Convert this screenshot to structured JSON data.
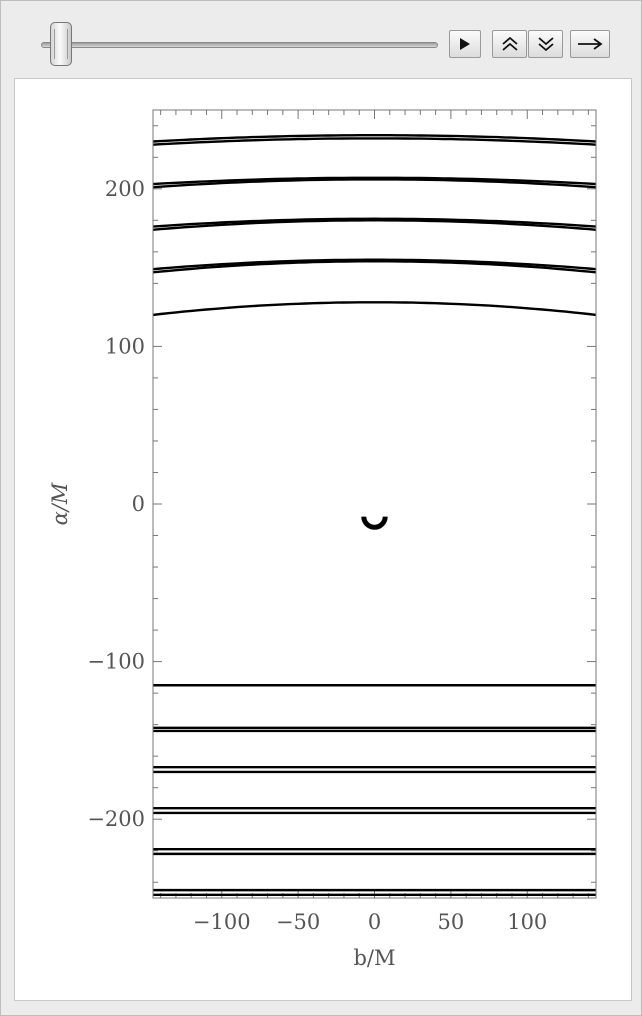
{
  "controls": {
    "slider_value": 0.02,
    "buttons": [
      {
        "name": "play-button",
        "icon": "play-icon"
      },
      {
        "name": "faster-button",
        "icon": "double-chevron-up-icon"
      },
      {
        "name": "slower-button",
        "icon": "double-chevron-down-icon"
      },
      {
        "name": "direction-button",
        "icon": "right-arrow-icon"
      }
    ]
  },
  "chart_data": {
    "type": "line",
    "xlabel": "b/M",
    "ylabel": "α/M",
    "xlim": [
      -145,
      145
    ],
    "ylim": [
      -250,
      250
    ],
    "x_ticks": [
      -100,
      -50,
      0,
      50,
      100
    ],
    "x_tick_labels": [
      "−100",
      "−50",
      "0",
      "50",
      "100"
    ],
    "y_ticks": [
      -200,
      -100,
      0,
      100,
      200
    ],
    "y_tick_labels": [
      "−200",
      "−100",
      "0",
      "100",
      "200"
    ],
    "frame_ticks": true,
    "grid": false,
    "line_color": "#000000",
    "upper_curves": [
      {
        "edge_y": 120,
        "center_y": 128
      },
      {
        "edge_y": 147,
        "center_y": 154
      },
      {
        "edge_y": 149,
        "center_y": 155
      },
      {
        "edge_y": 174,
        "center_y": 180
      },
      {
        "edge_y": 176,
        "center_y": 181
      },
      {
        "edge_y": 201,
        "center_y": 206
      },
      {
        "edge_y": 203,
        "center_y": 207
      },
      {
        "edge_y": 228,
        "center_y": 232
      },
      {
        "edge_y": 230,
        "center_y": 234
      }
    ],
    "lower_lines": [
      -115,
      -142,
      -144,
      -167,
      -170,
      -193,
      -196,
      -219,
      -222,
      -245,
      -248
    ],
    "center_shape": {
      "type": "arc",
      "cx": 0,
      "cy": -8,
      "r": 7,
      "from_deg": 180,
      "to_deg": 360
    }
  }
}
